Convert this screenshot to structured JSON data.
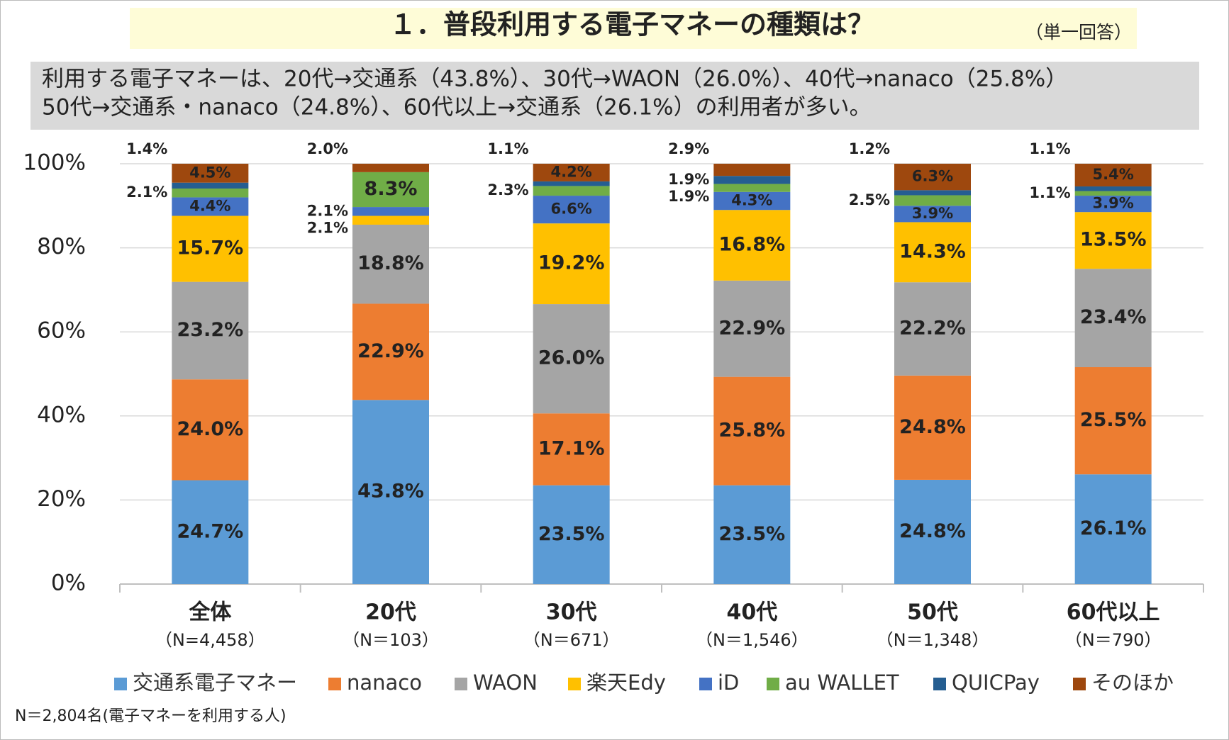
{
  "chart_data": {
    "type": "stacked_bar_100",
    "title": "１．普段利用する電子マネーの種類は？",
    "subtitle": "（単一回答）",
    "summary": [
      "利用する電子マネーは、20代→交通系（43.8%）、30代→WAON（26.0%）、40代→nanaco（25.8%）",
      "50代→交通系・nanaco（24.8%）、60代以上→交通系（26.1%）の利用者が多い。"
    ],
    "footnote": "N＝2,804名(電子マネーを利用する人)",
    "categories": [
      "全体",
      "20代",
      "30代",
      "40代",
      "50代",
      "60代以上"
    ],
    "category_notes": [
      "（N=4,458）",
      "（N＝103）",
      "（N＝671）",
      "（N＝1,546）",
      "（N＝1,348）",
      "（N＝790）"
    ],
    "ylim": [
      0,
      100
    ],
    "yticks": [
      {
        "value": 0,
        "label": "0%"
      },
      {
        "value": 20,
        "label": "20%"
      },
      {
        "value": 40,
        "label": "40%"
      },
      {
        "value": 60,
        "label": "60%"
      },
      {
        "value": 80,
        "label": "80%"
      },
      {
        "value": 100,
        "label": "100%"
      }
    ],
    "grid": true,
    "legend": "bottom",
    "series": [
      {
        "name": "交通系電子マネー",
        "color": "#5b9bd5",
        "values": [
          24.7,
          43.8,
          23.5,
          23.5,
          24.8,
          26.1
        ],
        "value_labels": [
          "24.7%",
          "43.8%",
          "23.5%",
          "23.5%",
          "24.8%",
          "26.1%"
        ]
      },
      {
        "name": "nanaco",
        "color": "#ed7d31",
        "values": [
          24.0,
          22.9,
          17.1,
          25.8,
          24.8,
          25.5
        ],
        "value_labels": [
          "24.0%",
          "22.9%",
          "17.1%",
          "25.8%",
          "24.8%",
          "25.5%"
        ]
      },
      {
        "name": "WAON",
        "color": "#a5a5a5",
        "values": [
          23.2,
          18.8,
          26.0,
          22.9,
          22.2,
          23.4
        ],
        "value_labels": [
          "23.2%",
          "18.8%",
          "26.0%",
          "22.9%",
          "22.2%",
          "23.4%"
        ]
      },
      {
        "name": "楽天Edy",
        "color": "#ffc000",
        "values": [
          15.7,
          2.1,
          19.2,
          16.8,
          14.3,
          13.5
        ],
        "value_labels": [
          "15.7%",
          "2.1%",
          "19.2%",
          "16.8%",
          "14.3%",
          "13.5%"
        ]
      },
      {
        "name": "iD",
        "color": "#4472c4",
        "values": [
          4.4,
          2.1,
          6.6,
          4.3,
          3.9,
          3.9
        ],
        "value_labels": [
          "4.4%",
          "2.1%",
          "6.6%",
          "4.3%",
          "3.9%",
          "3.9%"
        ]
      },
      {
        "name": "au WALLET",
        "color": "#70ad47",
        "values": [
          2.1,
          8.3,
          2.3,
          1.9,
          2.5,
          1.1
        ],
        "value_labels": [
          "2.1%",
          "8.3%",
          "2.3%",
          "1.9%",
          "2.5%",
          "1.1%"
        ]
      },
      {
        "name": "QUICPay",
        "color": "#255e91",
        "values": [
          1.4,
          0,
          1.1,
          1.9,
          1.2,
          1.1
        ],
        "value_labels": [
          "1.4%",
          null,
          "1.1%",
          "1.9%",
          "1.2%",
          "1.1%"
        ]
      },
      {
        "name": "そのほか",
        "color": "#9e480e",
        "values": [
          4.5,
          2.0,
          4.2,
          2.9,
          6.3,
          5.4
        ],
        "value_labels": [
          "4.5%",
          "2.0%",
          "4.2%",
          "2.9%",
          "6.3%",
          "5.4%"
        ]
      }
    ]
  }
}
